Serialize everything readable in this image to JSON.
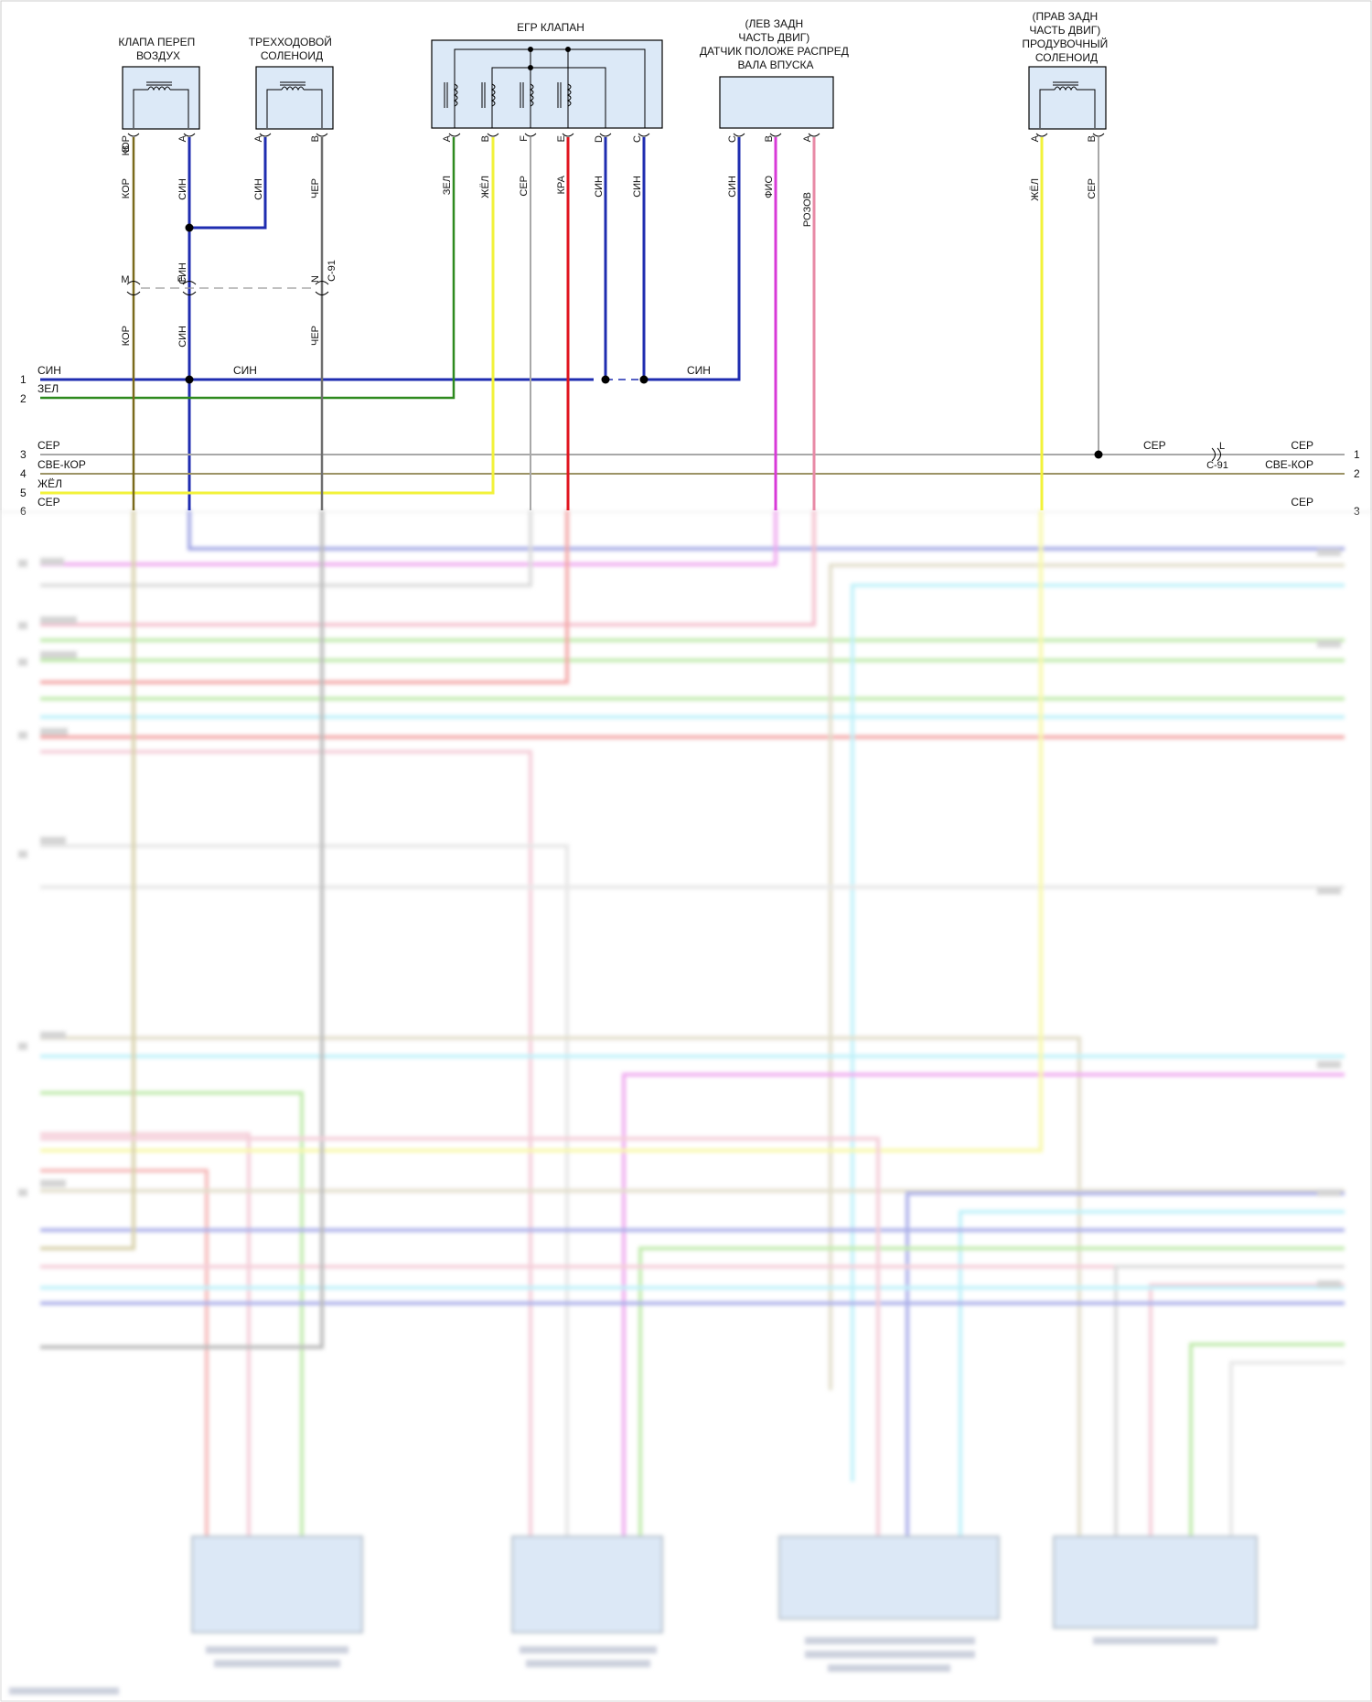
{
  "colors": {
    "blue": "#1f2db0",
    "green": "#2e8a1f",
    "gray": "#a8a8a8",
    "light_brown": "#9c9366",
    "yellow": "#f2f23a",
    "red": "#e0141e",
    "magenta": "#d83ad8",
    "pink": "#e88aa6",
    "brown": "#7a6a1c",
    "dark_gray": "#6e6e6e",
    "cyan": "#5ad8f0",
    "light_green": "#88d86a",
    "component_fill": "#dce9f7"
  },
  "components": {
    "air_valve": {
      "title_lines": [
        "КЛАПА ПЕРЕП",
        "ВОЗДУХ"
      ]
    },
    "three_way": {
      "title_lines": [
        "ТРЕХХОДОВОЙ",
        "СОЛЕНОИД"
      ]
    },
    "egr": {
      "title_lines": [
        "ЕГР КЛАПАН"
      ]
    },
    "cam_sensor": {
      "title_lines": [
        "(ЛЕВ ЗАДН",
        "ЧАСТЬ ДВИГ)",
        "ДАТЧИК ПОЛОЖЕ РАСПРЕД",
        "ВАЛА ВПУСКА"
      ]
    },
    "purge": {
      "title_lines": [
        "(ПРАВ ЗАДН",
        "ЧАСТЬ ДВИГ)",
        "ПРОДУВОЧНЫЙ",
        "СОЛЕНОИД"
      ]
    }
  },
  "pins": {
    "air_valve": [
      "КОР",
      "B",
      "СИН",
      "A"
    ],
    "three_way": [
      "СИН",
      "A",
      "ЧЕР",
      "B"
    ],
    "egr": [
      "ЗЕЛ",
      "A",
      "ЖЁЛ",
      "B",
      "СЕР",
      "F",
      "КРА",
      "E",
      "СИН",
      "D",
      "СИН",
      "C"
    ],
    "cam_sensor": [
      "СИН",
      "C",
      "ФИО",
      "B",
      "РОЗОВ",
      "A"
    ],
    "purge": [
      "ЖЁЛ",
      "A",
      "СЕР",
      "B"
    ]
  },
  "splice": {
    "upper_label": "СИН"
  },
  "connector_c91": {
    "name": "C-91",
    "pin_letters": [
      "M",
      "F",
      "N",
      "L"
    ],
    "lower_wire_labels": [
      "КОР",
      "СИН",
      "ЧЕР"
    ]
  },
  "left_rows": [
    {
      "num": "1",
      "wire": "СИН"
    },
    {
      "num": "2",
      "wire": "ЗЕЛ"
    },
    {
      "num": "3",
      "wire": "СЕР"
    },
    {
      "num": "4",
      "wire": "СВЕ-КОР"
    },
    {
      "num": "5",
      "wire": "ЖЁЛ"
    },
    {
      "num": "6",
      "wire": "СЕР"
    }
  ],
  "mid_wire_labels": [
    "СИН",
    "СИН",
    "СЕР"
  ],
  "right_rows": [
    {
      "num": "1",
      "wire": "СЕР"
    },
    {
      "num": "2",
      "wire": "СВЕ-КОР"
    },
    {
      "num": "3",
      "wire": "СЕР"
    }
  ]
}
